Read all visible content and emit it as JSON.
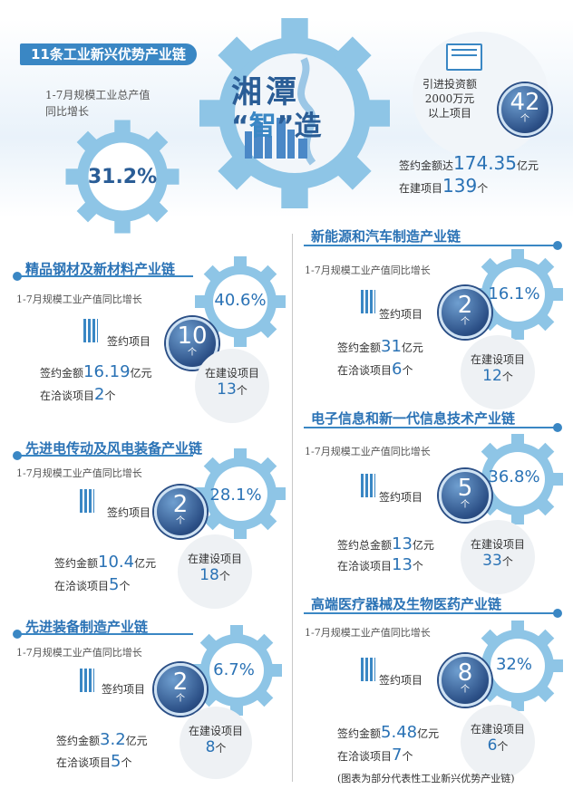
{
  "header": {
    "banner": "11条工业新兴优势产业链",
    "total_label_line1": "1-7月规模工业总产值",
    "total_label_line2": "同比增长",
    "total_pct": "31.2%",
    "title_line1": "湘潭",
    "title_q1": "“",
    "title_zhi": "智",
    "title_q2": "”",
    "title_zao": "造",
    "invest_line1": "引进投资额",
    "invest_line2": "2000万元",
    "invest_line3": "以上项目",
    "invest_count": "42",
    "invest_unit": "个",
    "sign_prefix": "签约金额达",
    "sign_amount": "174.35",
    "sign_unit": "亿元",
    "build_prefix": "在建项目",
    "build_count": "139",
    "build_unit": "个"
  },
  "common": {
    "growth_label": "1-7月规模工业产值同比增长",
    "sign_project": "签约项目",
    "unit_ge": "个",
    "unit_yi": "亿元",
    "in_build": "在建设项目",
    "negotiating": "在洽谈项目",
    "sign_amount": "签约金额"
  },
  "sections": [
    {
      "title": "精品钢材及新材料产业链",
      "pct": "40.6%",
      "sign_count": "10",
      "amount": "16.19",
      "neg": "2",
      "build": "13",
      "amount_label": "签约金额"
    },
    {
      "title": "先进电传动及风电装备产业链",
      "pct": "28.1%",
      "sign_count": "2",
      "amount": "10.4",
      "neg": "5",
      "build": "18",
      "amount_label": "签约金额"
    },
    {
      "title": "先进装备制造产业链",
      "pct": "6.7%",
      "sign_count": "2",
      "amount": "3.2",
      "neg": "5",
      "build": "8",
      "amount_label": "签约金额"
    },
    {
      "title": "新能源和汽车制造产业链",
      "pct": "16.1%",
      "sign_count": "2",
      "amount": "31",
      "neg": "6",
      "build": "12",
      "amount_label": "签约金额"
    },
    {
      "title": "电子信息和新一代信息技术产业链",
      "pct": "36.8%",
      "sign_count": "5",
      "amount": "13",
      "neg": "13",
      "build": "33",
      "amount_label": "签约总金额"
    },
    {
      "title": "高端医疗器械及生物医药产业链",
      "pct": "32%",
      "sign_count": "8",
      "amount": "5.48",
      "neg": "7",
      "build": "6",
      "amount_label": "签约金额"
    }
  ],
  "footnote": "(图表为部分代表性工业新兴优势产业链)",
  "colors": {
    "gear": "#8ec5e6",
    "accent": "#2a72b5",
    "dark": "#2b4f86"
  }
}
